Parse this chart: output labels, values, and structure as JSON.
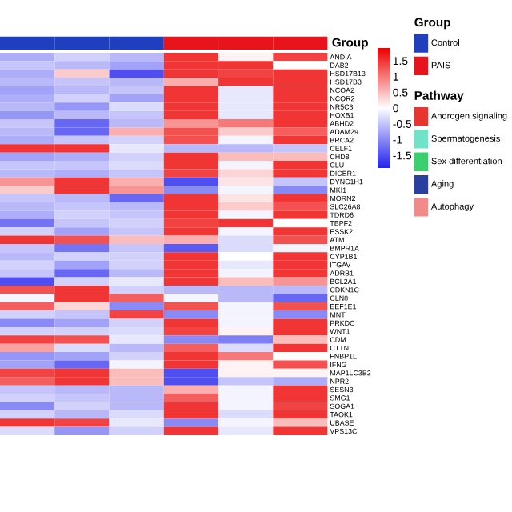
{
  "chart_data": [
    {
      "type": "heatmap",
      "annotations": [
        "Group"
      ],
      "categories": [
        null,
        null,
        null,
        null,
        null,
        null
      ],
      "colors": [
        "#1f3fbf",
        "#1f3fbf",
        "#1f3fbf",
        "#e8141c",
        "#e8141c",
        "#e8141c"
      ],
      "y_categories": [
        "ANDIA",
        "DAB2",
        "HSD17B13",
        "HSD17B3",
        "NCOA2",
        "NCOR2",
        "NR5C3",
        "HOXB1",
        "ABHD2",
        "ADAM29",
        "BRCA2",
        "CELF1",
        "CHD8",
        "CLU",
        "DICER1",
        "DYNC1H1",
        "MKI1",
        "MORN2",
        "SLC26A8",
        "TDRD6",
        "TBPF2",
        "ESSK2",
        "ATM",
        "BMPR1A",
        "CYP1B1",
        "ITGAV",
        "ADRB1",
        "BCL2A1",
        "CDKN1C",
        "CLN8",
        "EEF1E1",
        "MNT",
        "PRKDC",
        "WNT1",
        "CDM",
        "CTTN",
        "FNBP1L",
        "IFNG",
        "MAP1LC3B2",
        "NPR2",
        "SESN3",
        "SMG1",
        "SOGA1",
        "TAOK1",
        "UBASE",
        "VPS13C"
      ],
      "cells": [
        [
          -0.7,
          -0.4,
          -0.6,
          1.5,
          0.1,
          1.4
        ],
        [
          -0.5,
          -0.6,
          -0.8,
          1.5,
          1.5,
          0
        ],
        [
          -0.7,
          0.4,
          -1.5,
          1.5,
          1.4,
          1.5
        ],
        [
          -0.6,
          -0.5,
          -0.6,
          0.6,
          1.5,
          1.5
        ],
        [
          -0.8,
          -0.6,
          -0.5,
          1.5,
          -0.2,
          1.5
        ],
        [
          -0.7,
          -0.4,
          -0.8,
          1.5,
          -0.2,
          1.5
        ],
        [
          -0.6,
          -0.9,
          -0.3,
          1.5,
          -0.2,
          1.5
        ],
        [
          -0.9,
          -0.6,
          -0.5,
          1.5,
          -0.2,
          1.5
        ],
        [
          -0.5,
          -1.3,
          -0.6,
          0.8,
          1.0,
          1.5
        ],
        [
          -0.6,
          -1.3,
          0.6,
          1.3,
          0.4,
          1.2
        ],
        [
          -0.7,
          -0.5,
          -0.4,
          1.3,
          -0.1,
          1.5
        ],
        [
          1.5,
          1.5,
          -0.2,
          -0.6,
          -0.6,
          -0.5
        ],
        [
          -0.8,
          -0.7,
          -0.4,
          1.5,
          0.5,
          0.5
        ],
        [
          -0.5,
          -0.5,
          -0.3,
          1.5,
          -0.1,
          1.5
        ],
        [
          -0.6,
          -0.7,
          -0.5,
          1.4,
          0.3,
          1.5
        ],
        [
          0.8,
          1.5,
          0.6,
          -1.5,
          0.2,
          -0.5
        ],
        [
          0.4,
          1.5,
          0.8,
          -1.0,
          -0.1,
          -1.0
        ],
        [
          -0.5,
          -0.6,
          -1.3,
          1.5,
          0.2,
          1.5
        ],
        [
          -0.6,
          -0.5,
          -0.6,
          1.5,
          0.4,
          1.3
        ],
        [
          -0.7,
          -0.4,
          -0.5,
          1.5,
          -0.1,
          1.5
        ],
        [
          -1.2,
          -0.5,
          -0.4,
          1.4,
          1.5,
          0
        ],
        [
          -0.4,
          -0.8,
          -0.5,
          1.5,
          -0.1,
          1.5
        ],
        [
          1.5,
          1.3,
          0.5,
          0.6,
          -0.3,
          1.3
        ],
        [
          -0.5,
          -1.2,
          -0.5,
          -1.4,
          -0.3,
          -0.1
        ],
        [
          -0.6,
          -0.4,
          -0.4,
          1.5,
          0,
          1.5
        ],
        [
          -0.4,
          -0.8,
          -0.4,
          1.5,
          -0.2,
          1.5
        ],
        [
          -0.5,
          -1.3,
          -0.6,
          1.5,
          -0.1,
          1.5
        ],
        [
          -1.5,
          -0.4,
          -0.2,
          1.5,
          0.5,
          0.8
        ],
        [
          1.3,
          1.5,
          -0.4,
          -0.6,
          -0.6,
          -0.6
        ],
        [
          -0.1,
          1.5,
          1.2,
          -0.1,
          -0.6,
          -1.3
        ],
        [
          1.2,
          0.3,
          -1.0,
          1.3,
          -0.1,
          1.3
        ],
        [
          -0.4,
          -0.5,
          1.4,
          -1.0,
          -0.1,
          -1.0
        ],
        [
          -1.0,
          -0.8,
          -0.4,
          1.5,
          -0.1,
          1.5
        ],
        [
          -0.4,
          -0.4,
          -0.3,
          1.4,
          0.1,
          1.5
        ],
        [
          1.4,
          1.3,
          -0.2,
          -1.0,
          -1.1,
          0.5
        ],
        [
          0.7,
          -0.3,
          -0.6,
          1.2,
          -0.3,
          1.5
        ],
        [
          -0.9,
          -0.8,
          -0.4,
          1.5,
          1.0,
          0.0
        ],
        [
          -0.8,
          -1.3,
          -0.1,
          1.5,
          0.1,
          1.3
        ],
        [
          1.4,
          1.5,
          0.5,
          -1.5,
          0.1,
          0.1
        ],
        [
          1.2,
          1.5,
          0.5,
          -1.5,
          -0.5,
          -0.7
        ],
        [
          -0.5,
          -0.6,
          -0.6,
          0.6,
          -0.1,
          1.5
        ],
        [
          -0.4,
          -0.5,
          -0.6,
          1.2,
          -0.1,
          1.5
        ],
        [
          -1.0,
          -0.4,
          -0.6,
          1.5,
          -0.1,
          1.4
        ],
        [
          -0.4,
          -0.6,
          -0.3,
          1.5,
          -0.3,
          1.5
        ],
        [
          1.5,
          1.4,
          -0.2,
          -1.0,
          -0.1,
          0.5
        ],
        [
          -0.3,
          -0.9,
          -0.4,
          1.5,
          -0.2,
          1.5
        ]
      ],
      "clim": [
        -1.9,
        1.9
      ],
      "cticks": [
        1.5,
        1,
        0.5,
        0,
        {
          "value": -0.5,
          "label": "-0.5"
        },
        {
          "value": -1,
          "label": "-1"
        },
        {
          "value": -1.5,
          "label": "-1.5"
        }
      ]
    },
    {
      "type": "other",
      "annotations": [
        "Group",
        "Pathway"
      ],
      "legend": "right",
      "series": [
        {
          "name": "Control",
          "color": "#1f3fbf"
        },
        {
          "name": "PAIS",
          "color": "#e8141c"
        },
        {
          "name": "Androgen signaling",
          "color": "#e8362e"
        },
        {
          "name": "Spermatogenesis",
          "color": "#6fe3c8"
        },
        {
          "name": "Sex differentiation",
          "color": "#3bcf6e"
        },
        {
          "name": "Aging",
          "color": "#2b3f9e"
        },
        {
          "name": "Autophagy",
          "color": "#f28a8a"
        }
      ]
    }
  ]
}
